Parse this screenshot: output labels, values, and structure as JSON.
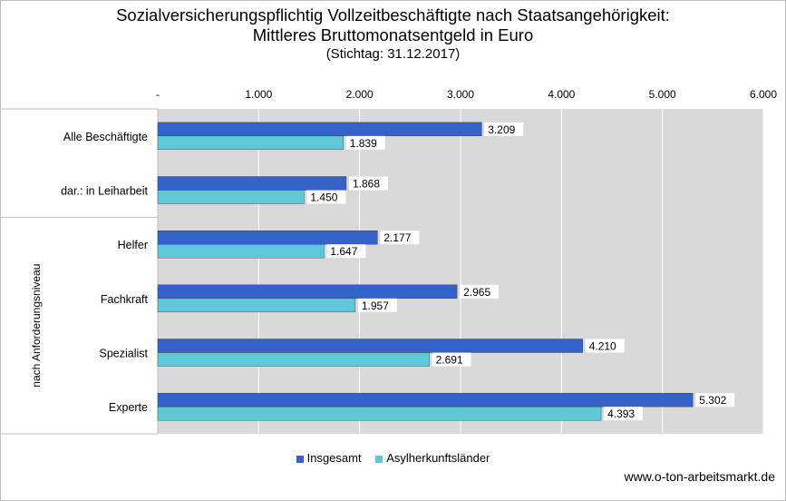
{
  "titles": {
    "line1": "Sozialversicherungspflichtig Vollzeitbeschäftigte nach Staatsangehörigkeit:",
    "line2": "Mittleres Bruttomonatsentgeld in Euro",
    "line3": "(Stichtag: 31.12.2017)"
  },
  "source": "www.o-ton-arbeitsmarkt.de",
  "colors": {
    "insgesamt": "#3462c8",
    "asyl": "#5ec8d8",
    "plot_bg": "#d9d9d9",
    "grid": "#ffffff"
  },
  "chart_data": {
    "type": "bar",
    "orientation": "horizontal",
    "title": "Sozialversicherungspflichtig Vollzeitbeschäftigte nach Staatsangehörigkeit: Mittleres Bruttomonatsentgeld in Euro",
    "subtitle": "(Stichtag: 31.12.2017)",
    "categories": [
      "Alle Beschäftigte",
      "dar.: in Leiharbeit",
      "Helfer",
      "Fachkraft",
      "Spezialist",
      "Experte"
    ],
    "group_label": "nach Anforderungsniveau",
    "grouped_categories": [
      "Helfer",
      "Fachkraft",
      "Spezialist",
      "Experte"
    ],
    "series": [
      {
        "name": "Insgesamt",
        "values": [
          3209,
          1868,
          2177,
          2965,
          4210,
          5302
        ],
        "labels": [
          "3.209",
          "1.868",
          "2.177",
          "2.965",
          "4.210",
          "5.302"
        ]
      },
      {
        "name": "Asylherkunftsländer",
        "values": [
          1839,
          1450,
          1647,
          1957,
          2691,
          4393
        ],
        "labels": [
          "1.839",
          "1.450",
          "1.647",
          "1.957",
          "2.691",
          "4.393"
        ]
      }
    ],
    "xlim": [
      0,
      6000
    ],
    "xticks": [
      0,
      1000,
      2000,
      3000,
      4000,
      5000,
      6000
    ],
    "xtick_labels": [
      "-",
      "1.000",
      "2.000",
      "3.000",
      "4.000",
      "5.000",
      "6.000"
    ],
    "axis_position": "top",
    "grid": true,
    "legend_position": "bottom"
  }
}
